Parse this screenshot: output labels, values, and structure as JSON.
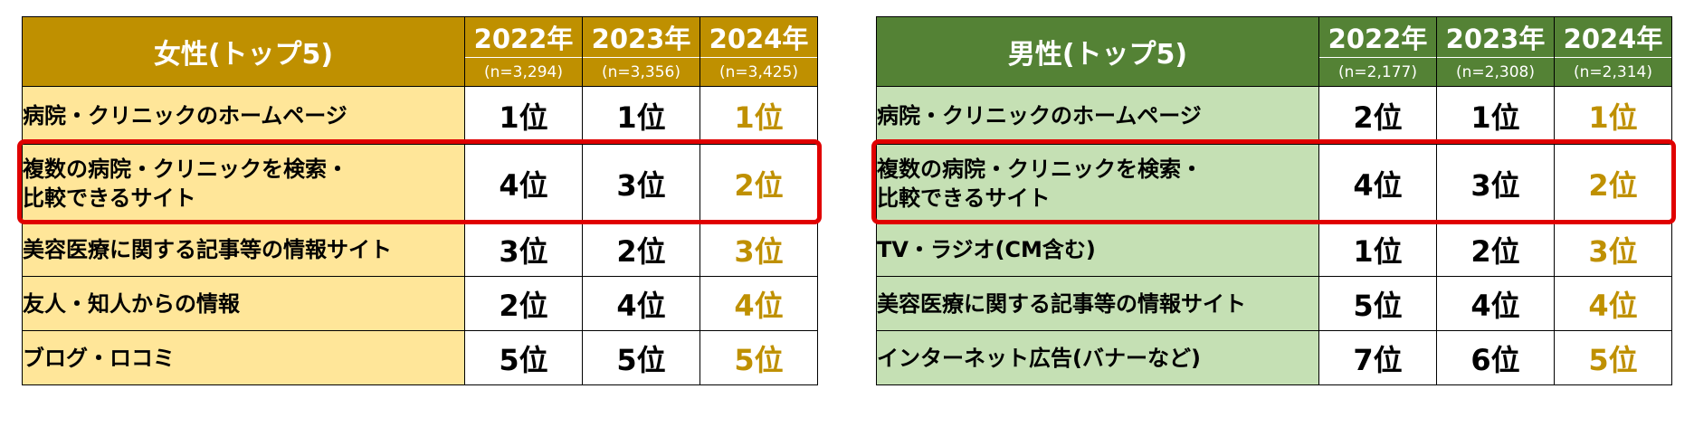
{
  "chart_data": [
    {
      "type": "table",
      "title": "女性(トップ5)",
      "years": [
        {
          "label": "2022年",
          "n": "(n=3,294)"
        },
        {
          "label": "2023年",
          "n": "(n=3,356)"
        },
        {
          "label": "2024年",
          "n": "(n=3,425)"
        }
      ],
      "rows": [
        {
          "label": "病院・クリニックのホームページ",
          "ranks": [
            "1位",
            "1位",
            "1位"
          ]
        },
        {
          "label": "複数の病院・クリニックを検索・\n比較できるサイト",
          "ranks": [
            "4位",
            "3位",
            "2位"
          ],
          "highlighted": true
        },
        {
          "label": "美容医療に関する記事等の情報サイト",
          "ranks": [
            "3位",
            "2位",
            "3位"
          ]
        },
        {
          "label": "友人・知人からの情報",
          "ranks": [
            "2位",
            "4位",
            "4位"
          ]
        },
        {
          "label": "ブログ・ロコミ",
          "ranks": [
            "5位",
            "5位",
            "5位"
          ]
        }
      ],
      "colors": {
        "header": "#bf9000",
        "label_bg": "#ffe699",
        "latest_rank": "#bf9000",
        "highlight": "#e00000"
      }
    },
    {
      "type": "table",
      "title": "男性(トップ5)",
      "years": [
        {
          "label": "2022年",
          "n": "(n=2,177)"
        },
        {
          "label": "2023年",
          "n": "(n=2,308)"
        },
        {
          "label": "2024年",
          "n": "(n=2,314)"
        }
      ],
      "rows": [
        {
          "label": "病院・クリニックのホームページ",
          "ranks": [
            "2位",
            "1位",
            "1位"
          ]
        },
        {
          "label": "複数の病院・クリニックを検索・\n比較できるサイト",
          "ranks": [
            "4位",
            "3位",
            "2位"
          ],
          "highlighted": true
        },
        {
          "label": "TV・ラジオ(CM含む)",
          "ranks": [
            "1位",
            "2位",
            "3位"
          ]
        },
        {
          "label": "美容医療に関する記事等の情報サイト",
          "ranks": [
            "5位",
            "4位",
            "4位"
          ]
        },
        {
          "label": "インターネット広告(バナーなど)",
          "ranks": [
            "7位",
            "6位",
            "5位"
          ]
        }
      ],
      "colors": {
        "header": "#548235",
        "label_bg": "#c5e0b4",
        "latest_rank": "#bf9000",
        "highlight": "#e00000"
      }
    }
  ]
}
